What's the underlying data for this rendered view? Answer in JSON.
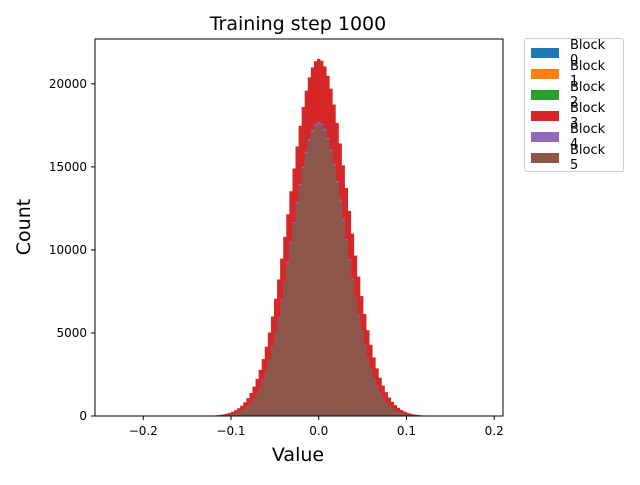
{
  "chart_data": {
    "type": "bar",
    "title": "Training step 1000",
    "xlabel": "Value",
    "ylabel": "Count",
    "xlim": [
      -0.255,
      0.21
    ],
    "ylim": [
      0,
      22700
    ],
    "x_ticks": [
      "−0.2",
      "−0.1",
      "0.0",
      "0.1",
      "0.2"
    ],
    "x_tick_values": [
      -0.2,
      -0.1,
      0.0,
      0.1,
      0.2
    ],
    "y_ticks": [
      "0",
      "5000",
      "10000",
      "15000",
      "20000"
    ],
    "y_tick_values": [
      0,
      5000,
      10000,
      15000,
      20000
    ],
    "grid": false,
    "legend_position": "outside-top-right",
    "bin_width": 0.0035,
    "series": [
      {
        "name": "Block 0",
        "color": "#1f77b4",
        "mean": 0.0,
        "std": 0.032,
        "peak": 17300
      },
      {
        "name": "Block 1",
        "color": "#ff7f0e",
        "mean": 0.0,
        "std": 0.032,
        "peak": 17400
      },
      {
        "name": "Block 2",
        "color": "#2ca02c",
        "mean": 0.0,
        "std": 0.032,
        "peak": 17500
      },
      {
        "name": "Block 3",
        "color": "#d62728",
        "mean": 0.0,
        "std": 0.033,
        "peak": 21500
      },
      {
        "name": "Block 4",
        "color": "#9467bd",
        "mean": 0.0,
        "std": 0.031,
        "peak": 17700
      },
      {
        "name": "Block 5",
        "color": "#8c564b",
        "mean": 0.0,
        "std": 0.031,
        "peak": 17600
      }
    ]
  }
}
